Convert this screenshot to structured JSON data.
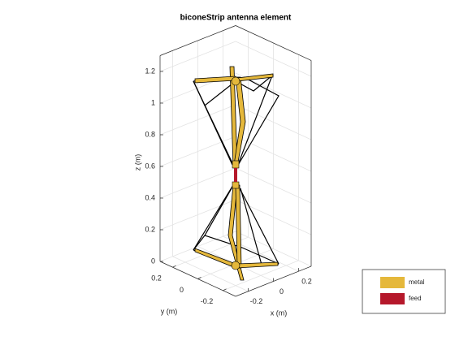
{
  "chart_data": {
    "type": "3d-antenna",
    "title": "biconeStrip antenna element",
    "xlabel": "x (m)",
    "ylabel": "y (m)",
    "zlabel": "z (m)",
    "xlim": [
      -0.3,
      0.3
    ],
    "ylim": [
      -0.3,
      0.3
    ],
    "zlim": [
      0,
      1.3
    ],
    "xticks": [
      -0.2,
      0,
      0.2
    ],
    "yticks": [
      -0.2,
      0,
      0.2
    ],
    "zticks": [
      0,
      0.2,
      0.4,
      0.6,
      0.8,
      1,
      1.2
    ],
    "grid": true,
    "legend": "lower-right",
    "series": [
      {
        "name": "metal",
        "color": "#e5b83b"
      },
      {
        "name": "feed",
        "color": "#b5182b"
      }
    ]
  }
}
